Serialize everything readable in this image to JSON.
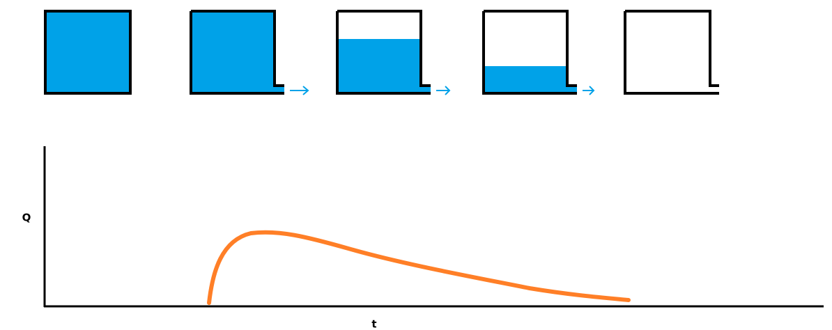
{
  "axes": {
    "y_label": "Q",
    "x_label": "t"
  }
}
